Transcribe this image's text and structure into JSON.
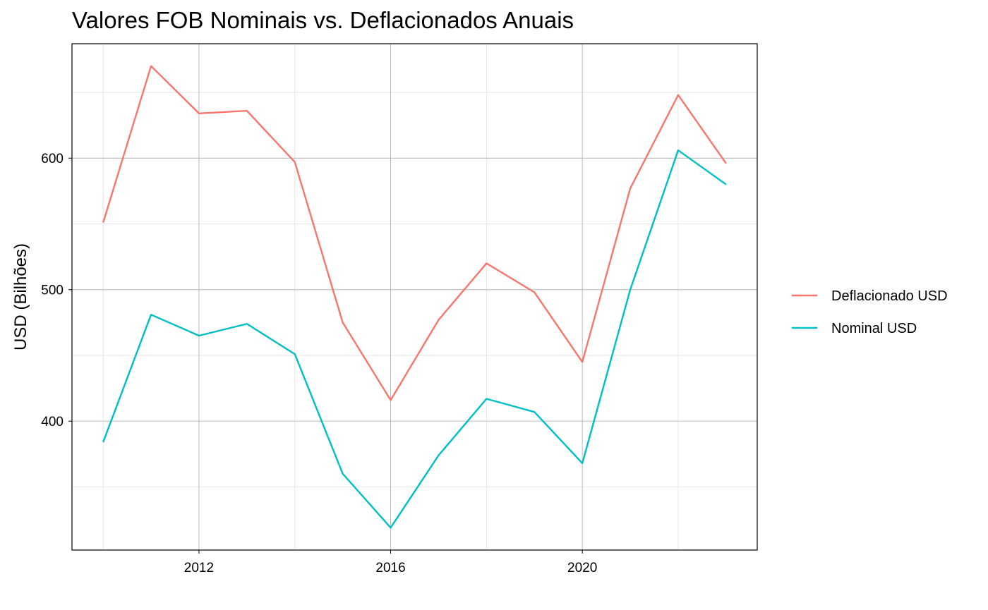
{
  "chart_data": {
    "type": "line",
    "title": "Valores FOB Nominais vs. Deflacionados Anuais",
    "xlabel": "",
    "ylabel": "USD (Bilhões)",
    "x": [
      2010,
      2011,
      2012,
      2013,
      2014,
      2015,
      2016,
      2017,
      2018,
      2019,
      2020,
      2021,
      2022,
      2023
    ],
    "xticks": [
      2012,
      2016,
      2020
    ],
    "yticks": [
      400,
      500,
      600
    ],
    "xlim": [
      2009.35,
      2023.65
    ],
    "ylim": [
      302,
      687
    ],
    "grid": true,
    "legend_position": "right",
    "series": [
      {
        "name": "Deflacionado USD",
        "color": "#F8766D",
        "values": [
          551,
          670,
          634,
          636,
          597,
          475,
          416,
          477,
          520,
          498,
          445,
          577,
          648,
          596
        ]
      },
      {
        "name": "Nominal USD",
        "color": "#00BFC4",
        "values": [
          384,
          481,
          465,
          474,
          451,
          360,
          319,
          374,
          417,
          407,
          368,
          500,
          606,
          580
        ]
      }
    ]
  }
}
